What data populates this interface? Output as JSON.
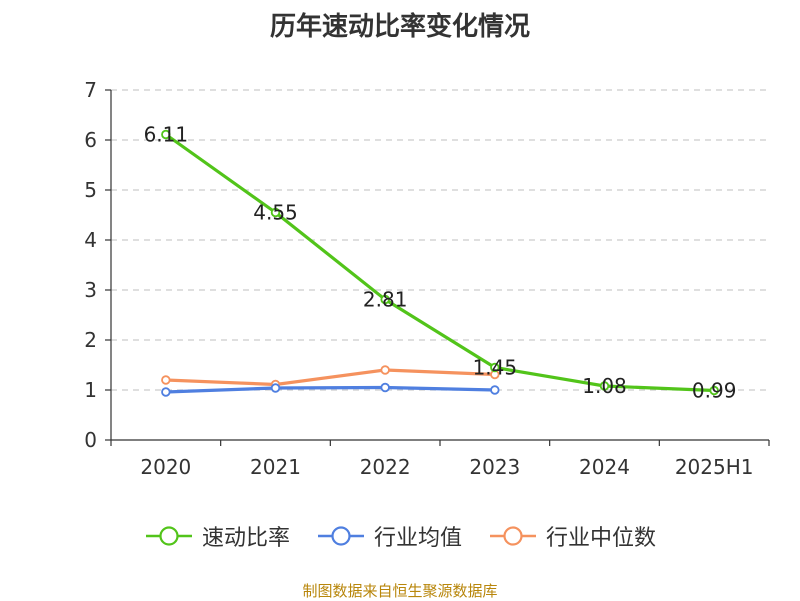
{
  "chart_data": {
    "type": "line",
    "title": "历年速动比率变化情况",
    "categories": [
      "2020",
      "2021",
      "2022",
      "2023",
      "2024",
      "2025H1"
    ],
    "ylim": [
      0,
      7
    ],
    "yticks": [
      0,
      1,
      2,
      3,
      4,
      5,
      6,
      7
    ],
    "grid": true,
    "legend_position": "bottom",
    "series": [
      {
        "name": "速动比率",
        "color": "#52c41a",
        "values": [
          6.11,
          4.55,
          2.81,
          1.45,
          1.08,
          0.99
        ],
        "labels": [
          "6.11",
          "4.55",
          "2.81",
          "1.45",
          "1.08",
          "0.99"
        ]
      },
      {
        "name": "行业均值",
        "color": "#4f7fe0",
        "values": [
          0.96,
          1.04,
          1.05,
          1.0,
          null,
          null
        ]
      },
      {
        "name": "行业中位数",
        "color": "#f5925e",
        "values": [
          1.2,
          1.11,
          1.4,
          1.31,
          null,
          null
        ]
      }
    ]
  },
  "footer": {
    "source": "制图数据来自恒生聚源数据库"
  }
}
